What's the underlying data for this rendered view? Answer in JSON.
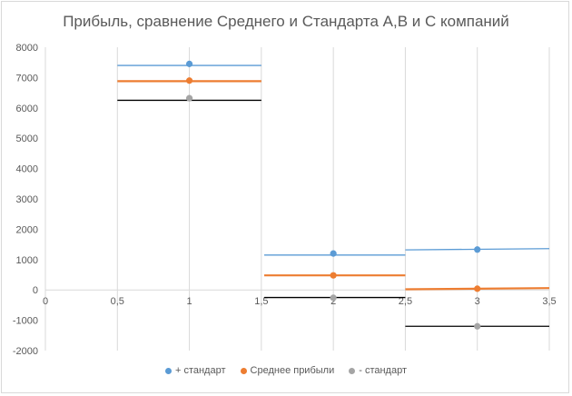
{
  "chart_data": {
    "type": "scatter",
    "title": "Прибыль, сравнение Среднего и Стандарта А,В и С компаний",
    "xlabel": "",
    "ylabel": "",
    "xlim": [
      0,
      3.5
    ],
    "ylim": [
      -2000,
      8000
    ],
    "x_ticks": [
      "0",
      "0,5",
      "1",
      "1,5",
      "2",
      "2,5",
      "3",
      "3,5"
    ],
    "y_ticks": [
      "8000",
      "7000",
      "6000",
      "5000",
      "4000",
      "3000",
      "2000",
      "1000",
      "0",
      "-1000",
      "-2000"
    ],
    "grid": "vertical",
    "legend_position": "bottom",
    "series": [
      {
        "name": "+ стандарт",
        "color": "#5b9bd5",
        "x": [
          1,
          2,
          3
        ],
        "y": [
          7450,
          1200,
          1330
        ],
        "lines": [
          {
            "x": [
              0.5,
              1.5
            ],
            "y": [
              7400,
              7400
            ]
          },
          {
            "x": [
              1.52,
              2.5
            ],
            "y": [
              1150,
              1150
            ]
          },
          {
            "x": [
              2.5,
              3.5
            ],
            "y": [
              1320,
              1360
            ]
          }
        ]
      },
      {
        "name": "Среднее прибыли",
        "color": "#ed7d31",
        "x": [
          1,
          2,
          3
        ],
        "y": [
          6900,
          480,
          40
        ],
        "lines": [
          {
            "x": [
              0.5,
              1.5
            ],
            "y": [
              6880,
              6880
            ]
          },
          {
            "x": [
              1.52,
              2.5
            ],
            "y": [
              480,
              480
            ]
          },
          {
            "x": [
              2.5,
              3.5
            ],
            "y": [
              20,
              60
            ]
          }
        ]
      },
      {
        "name": "- стандарт",
        "color": "#a5a5a5",
        "line_color": "#000000",
        "x": [
          1,
          2,
          3
        ],
        "y": [
          6320,
          -260,
          -1200
        ],
        "lines": [
          {
            "x": [
              0.5,
              1.5
            ],
            "y": [
              6250,
              6250
            ]
          },
          {
            "x": [
              1.52,
              2.5
            ],
            "y": [
              -250,
              -250
            ]
          },
          {
            "x": [
              2.5,
              3.5
            ],
            "y": [
              -1200,
              -1200
            ]
          }
        ]
      }
    ]
  }
}
